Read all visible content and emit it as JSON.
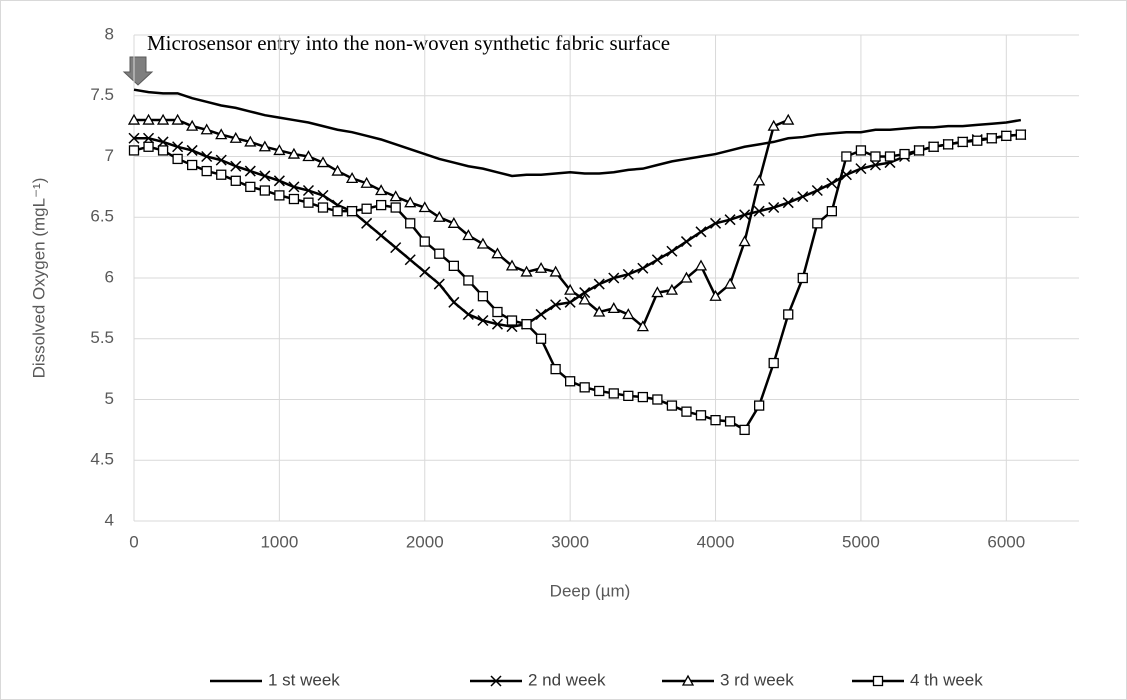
{
  "chart_data": {
    "type": "line",
    "annotation": "Microsensor entry into the non-woven synthetic fabric surface",
    "x_label": "Deep  (µm)",
    "y_label": "Dissolved Oxygen (mgL⁻¹)",
    "xlim": [
      0,
      6500
    ],
    "xticks": [
      0,
      1000,
      2000,
      3000,
      4000,
      5000,
      6000
    ],
    "ylim": [
      4,
      8
    ],
    "yticks": [
      4,
      4.5,
      5,
      5.5,
      6,
      6.5,
      7,
      7.5,
      8
    ],
    "grid": true,
    "legend": "bottom",
    "x": [
      0,
      100,
      200,
      300,
      400,
      500,
      600,
      700,
      800,
      900,
      1000,
      1100,
      1200,
      1300,
      1400,
      1500,
      1600,
      1700,
      1800,
      1900,
      2000,
      2100,
      2200,
      2300,
      2400,
      2500,
      2600,
      2700,
      2800,
      2900,
      3000,
      3100,
      3200,
      3300,
      3400,
      3500,
      3600,
      3700,
      3800,
      3900,
      4000,
      4100,
      4200,
      4300,
      4400,
      4500,
      4600,
      4700,
      4800,
      4900,
      5000,
      5100,
      5200,
      5300,
      5400,
      5500,
      5600,
      5700,
      5800,
      5900,
      6000,
      6100
    ],
    "series": [
      {
        "name": "1 st week",
        "color": "#000000",
        "marker": "none",
        "values": [
          7.55,
          7.53,
          7.52,
          7.52,
          7.48,
          7.45,
          7.42,
          7.4,
          7.37,
          7.34,
          7.32,
          7.3,
          7.28,
          7.25,
          7.22,
          7.2,
          7.17,
          7.14,
          7.1,
          7.06,
          7.02,
          6.98,
          6.95,
          6.92,
          6.9,
          6.87,
          6.84,
          6.85,
          6.85,
          6.86,
          6.87,
          6.86,
          6.86,
          6.87,
          6.89,
          6.9,
          6.93,
          6.96,
          6.98,
          7.0,
          7.02,
          7.05,
          7.08,
          7.1,
          7.12,
          7.15,
          7.16,
          7.18,
          7.19,
          7.2,
          7.2,
          7.22,
          7.22,
          7.23,
          7.24,
          7.24,
          7.25,
          7.25,
          7.26,
          7.27,
          7.28,
          7.3
        ]
      },
      {
        "name": "2 nd week",
        "color": "#000000",
        "marker": "x",
        "values": [
          7.15,
          7.15,
          7.12,
          7.08,
          7.05,
          7.0,
          6.97,
          6.92,
          6.88,
          6.84,
          6.8,
          6.75,
          6.72,
          6.68,
          6.6,
          6.55,
          6.45,
          6.35,
          6.25,
          6.15,
          6.05,
          5.95,
          5.8,
          5.7,
          5.65,
          5.62,
          5.6,
          5.62,
          5.7,
          5.78,
          5.8,
          5.88,
          5.95,
          6.0,
          6.03,
          6.08,
          6.15,
          6.22,
          6.3,
          6.38,
          6.45,
          6.48,
          6.52,
          6.55,
          6.58,
          6.62,
          6.67,
          6.72,
          6.78,
          6.85,
          6.9,
          6.93,
          6.95,
          7.0,
          7.05,
          7.08,
          7.1,
          7.12,
          7.14,
          7.15,
          7.17,
          7.18
        ]
      },
      {
        "name": "3 rd week",
        "color": "#000000",
        "marker": "triangle",
        "values": [
          7.3,
          7.3,
          7.3,
          7.3,
          7.25,
          7.22,
          7.18,
          7.15,
          7.12,
          7.08,
          7.05,
          7.02,
          7.0,
          6.95,
          6.88,
          6.82,
          6.78,
          6.72,
          6.67,
          6.62,
          6.58,
          6.5,
          6.45,
          6.35,
          6.28,
          6.2,
          6.1,
          6.05,
          6.08,
          6.05,
          5.9,
          5.82,
          5.72,
          5.75,
          5.7,
          5.6,
          5.88,
          5.9,
          6.0,
          6.1,
          5.85,
          5.95,
          6.3,
          6.8,
          7.25,
          7.3,
          null,
          null,
          null,
          null,
          null,
          null,
          null,
          null,
          null,
          null,
          null,
          null,
          null,
          null,
          null,
          null
        ]
      },
      {
        "name": "4 th week",
        "color": "#000000",
        "marker": "square",
        "values": [
          7.05,
          7.08,
          7.05,
          6.98,
          6.93,
          6.88,
          6.85,
          6.8,
          6.75,
          6.72,
          6.68,
          6.65,
          6.62,
          6.58,
          6.55,
          6.55,
          6.57,
          6.6,
          6.58,
          6.45,
          6.3,
          6.2,
          6.1,
          5.98,
          5.85,
          5.72,
          5.65,
          5.62,
          5.5,
          5.25,
          5.15,
          5.1,
          5.07,
          5.05,
          5.03,
          5.02,
          5.0,
          4.95,
          4.9,
          4.87,
          4.83,
          4.82,
          4.75,
          4.95,
          5.3,
          5.7,
          6.0,
          6.45,
          6.55,
          7.0,
          7.05,
          7.0,
          7.0,
          7.02,
          7.05,
          7.08,
          7.1,
          7.12,
          7.13,
          7.15,
          7.17,
          7.18
        ]
      }
    ]
  }
}
